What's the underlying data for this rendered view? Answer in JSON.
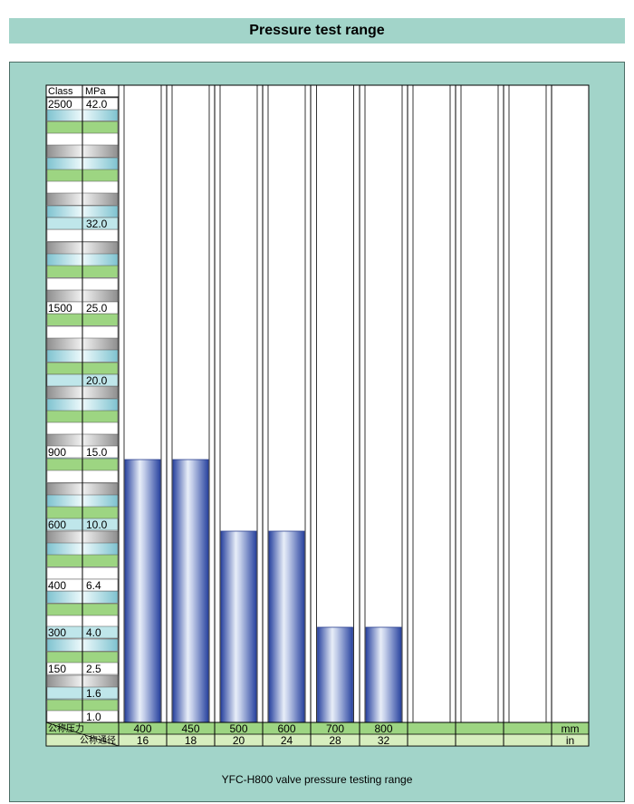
{
  "title": "Pressure test range",
  "caption": "YFC-H800 valve pressure testing range",
  "colors": {
    "panel_bg": "#a2d4c9",
    "bar_dark": "#2e4aa6",
    "bar_light": "#ffffff",
    "row_green": "#9dd582",
    "row_light_blue": "#bfe6ea",
    "row_gray": "#c9c9c9"
  },
  "chart_data": {
    "type": "bar",
    "title": "Pressure test range",
    "scale_header": {
      "class_label": "Class",
      "mpa_label": "MPa"
    },
    "y_labels": [
      {
        "class": "2500",
        "mpa": "42.0"
      },
      {
        "class": "",
        "mpa": "32.0"
      },
      {
        "class": "1500",
        "mpa": "25.0"
      },
      {
        "class": "",
        "mpa": "20.0"
      },
      {
        "class": "900",
        "mpa": "15.0"
      },
      {
        "class": "600",
        "mpa": "10.0"
      },
      {
        "class": "400",
        "mpa": "6.4"
      },
      {
        "class": "300",
        "mpa": "4.0"
      },
      {
        "class": "150",
        "mpa": "2.5"
      },
      {
        "class": "",
        "mpa": "1.6"
      },
      {
        "class": "",
        "mpa": "1.0"
      }
    ],
    "footer_labels": {
      "row1_label": "公称压力",
      "row2_label": "公称通径",
      "mm_unit": "mm",
      "in_unit": "in"
    },
    "categories_mm": [
      "400",
      "450",
      "500",
      "600",
      "700",
      "800",
      "",
      "",
      "",
      ""
    ],
    "categories_in": [
      "16",
      "18",
      "20",
      "24",
      "28",
      "32",
      "",
      "",
      "",
      ""
    ],
    "series": [
      {
        "values": [
          15.0,
          15.0,
          10.0,
          10.0,
          4.0,
          4.0
        ]
      }
    ]
  }
}
